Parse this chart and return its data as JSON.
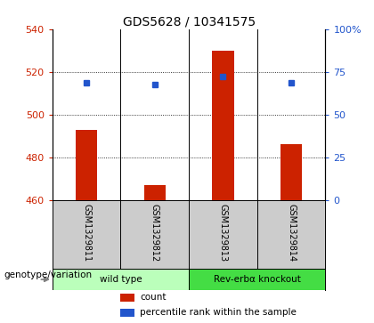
{
  "title": "GDS5628 / 10341575",
  "samples": [
    "GSM1329811",
    "GSM1329812",
    "GSM1329813",
    "GSM1329814"
  ],
  "bar_values": [
    493,
    467,
    530,
    486
  ],
  "percentile_values": [
    515,
    514,
    518,
    515
  ],
  "bar_bottom": 460,
  "ylim_left": [
    460,
    540
  ],
  "ylim_right": [
    0,
    100
  ],
  "yticks_left": [
    460,
    480,
    500,
    520,
    540
  ],
  "yticks_right": [
    0,
    25,
    50,
    75,
    100
  ],
  "ytick_right_labels": [
    "0",
    "25",
    "50",
    "75",
    "100%"
  ],
  "bar_color": "#cc2200",
  "square_color": "#2255cc",
  "grid_color": "#000000",
  "groups": [
    {
      "label": "wild type",
      "indices": [
        0,
        1
      ],
      "color": "#bbffbb"
    },
    {
      "label": "Rev-erbα knockout",
      "indices": [
        2,
        3
      ],
      "color": "#44dd44"
    }
  ],
  "group_label": "genotype/variation",
  "legend_count": "count",
  "legend_percentile": "percentile rank within the sample",
  "title_fontsize": 10,
  "axis_label_color_left": "#cc2200",
  "axis_label_color_right": "#2255cc",
  "background_color": "#ffffff",
  "plot_bg": "#ffffff",
  "tick_area_bg": "#cccccc"
}
